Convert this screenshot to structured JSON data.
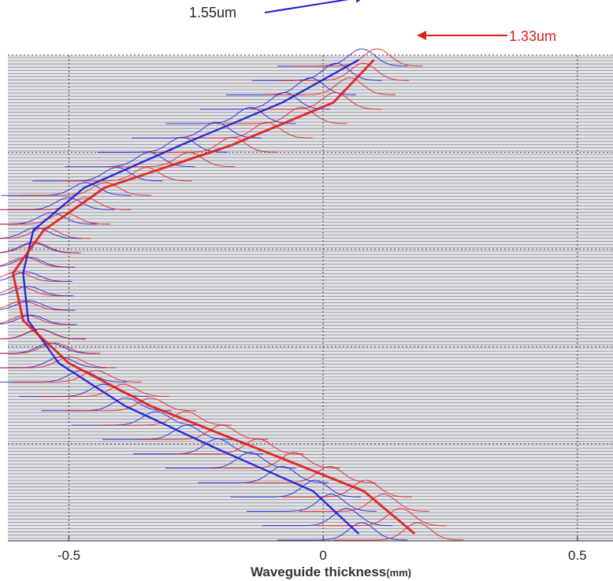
{
  "chart_data": {
    "type": "line",
    "title": "",
    "xlabel": "Waveguide thickness",
    "xlabel_unit": "(mm)",
    "ylabel": "",
    "xlim": [
      -0.62,
      0.57
    ],
    "xticks": [
      -0.5,
      0,
      0.5
    ],
    "xtick_labels": [
      "-0.5",
      "0",
      "0.5"
    ],
    "grid": true,
    "grid_style": "dotted",
    "trace_count": 34,
    "series": [
      {
        "name": "1.55um",
        "color": "#1a1ad6",
        "envelope_x": [
          0.07,
          -0.08,
          -0.28,
          -0.47,
          -0.57,
          -0.59,
          -0.58,
          -0.52,
          -0.39,
          -0.21,
          -0.02,
          0.07
        ]
      },
      {
        "name": "1.33um",
        "color": "#e11b1b",
        "envelope_x": [
          0.1,
          0.02,
          -0.18,
          -0.43,
          -0.55,
          -0.61,
          -0.59,
          -0.5,
          -0.34,
          -0.13,
          0.08,
          0.18
        ]
      }
    ],
    "envelope_rows": [
      0,
      0.09,
      0.18,
      0.27,
      0.36,
      0.45,
      0.55,
      0.64,
      0.73,
      0.82,
      0.91,
      1
    ],
    "annotations": [
      {
        "text": "1.55um",
        "color": "#1a1ad6",
        "target_x": 0.09,
        "target_row": -0.03
      },
      {
        "text": "1.33um",
        "color": "#e11b1b",
        "target_x": 0.18,
        "target_row": -0.01
      }
    ]
  }
}
